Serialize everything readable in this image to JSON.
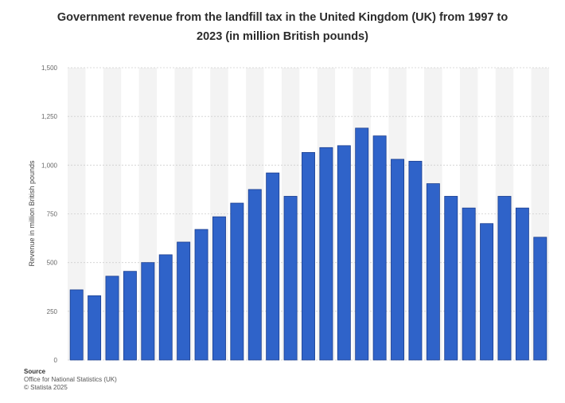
{
  "title_line1": "Government revenue from the landfill tax in the United Kingdom (UK) from 1997 to",
  "title_line2": "2023 (in million British pounds)",
  "source": {
    "heading": "Source",
    "line1": "Office for National Statistics (UK)",
    "line2": "© Statista 2025"
  },
  "colors": {
    "bar": "#2f63c9",
    "bar_edge": "#1c3f8f",
    "column_band": "#f3f3f3",
    "gridline": "#cfcfcf"
  },
  "chart_data": {
    "type": "bar",
    "title": "Government revenue from the landfill tax in the United Kingdom (UK) from 1997 to 2023 (in million British pounds)",
    "ylabel": "Revenue in million British pounds",
    "xlabel": "",
    "ylim": [
      0,
      1500
    ],
    "yticks": [
      0,
      250,
      500,
      750,
      1000,
      1250,
      1500
    ],
    "ytick_labels": [
      "0",
      "250",
      "500",
      "750",
      "1,000",
      "1,250",
      "1,500"
    ],
    "grid": true,
    "values": [
      360,
      330,
      430,
      455,
      500,
      540,
      605,
      670,
      735,
      805,
      875,
      960,
      840,
      1065,
      1090,
      1100,
      1190,
      1150,
      1030,
      1020,
      905,
      840,
      780,
      700,
      840,
      780,
      630
    ]
  }
}
